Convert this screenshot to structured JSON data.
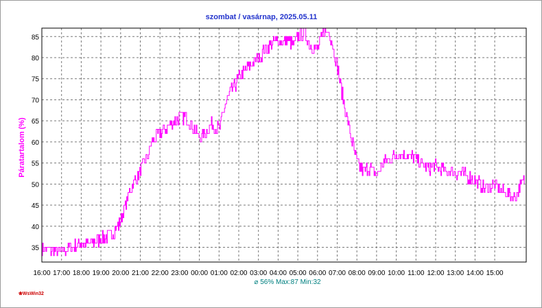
{
  "chart_data": {
    "type": "line",
    "title": "szombat / vasárnap, 2025.05.11",
    "ylabel": "Páratartalom (%)",
    "xlabel": "",
    "x_ticks": [
      "16:00",
      "17:00",
      "18:00",
      "19:00",
      "20:00",
      "21:00",
      "22:00",
      "23:00",
      "00:00",
      "01:00",
      "02:00",
      "03:00",
      "04:00",
      "05:00",
      "06:00",
      "07:00",
      "08:00",
      "09:00",
      "10:00",
      "11:00",
      "12:00",
      "13:00",
      "14:00",
      "15:00"
    ],
    "y_ticks": [
      35,
      40,
      45,
      50,
      55,
      60,
      65,
      70,
      75,
      80,
      85
    ],
    "ylim": [
      31.5,
      87
    ],
    "x_range_hours": [
      0,
      24.6
    ],
    "grid": true,
    "line_color": "#ff00ff",
    "series": [
      {
        "x": [
          0,
          0.5,
          1,
          1.5,
          2,
          2.5,
          3,
          3.5,
          4,
          4.3,
          4.6,
          5,
          5.3,
          5.6,
          6,
          6.5,
          7,
          7.3,
          7.6,
          8,
          8.3,
          8.6,
          9,
          9.3,
          9.6,
          10,
          10.5,
          11,
          11.5,
          12,
          12.5,
          12.8,
          13,
          13.3,
          13.6,
          14,
          14.3,
          14.6,
          15,
          15.3,
          15.6,
          16,
          16.3,
          16.6,
          17,
          17.3,
          17.6,
          18,
          18.5,
          19,
          19.5,
          20,
          20.5,
          21,
          21.5,
          22,
          22.5,
          23,
          23.5,
          24,
          24.5
        ],
        "values": [
          35,
          34,
          34,
          35,
          36,
          36,
          37,
          38,
          41,
          46,
          50,
          53,
          56,
          60,
          62,
          64,
          66,
          66,
          64,
          61,
          62,
          64,
          63,
          69,
          72,
          75,
          78,
          80,
          83,
          84,
          84,
          83,
          85,
          86,
          83,
          82,
          86,
          86,
          78,
          70,
          63,
          55,
          53,
          54,
          52,
          55,
          56,
          57,
          57,
          56,
          54,
          54,
          53,
          53,
          52,
          51,
          49,
          50,
          48,
          47,
          51
        ],
        "noise": 1.6
      }
    ],
    "stats_text": "⌀ 56%  Max:87  Min:32"
  },
  "footer": {
    "logo_text": "❀WsWin32"
  }
}
